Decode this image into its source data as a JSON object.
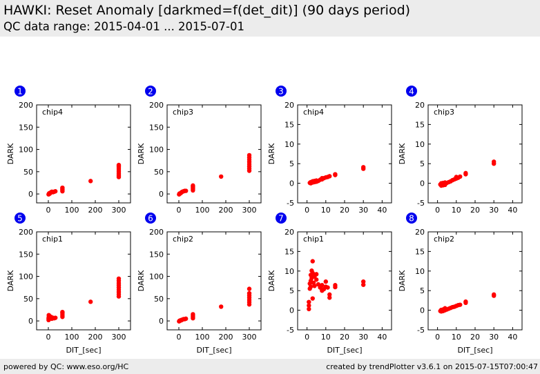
{
  "header": {
    "title_line1": "HAWKI: Reset Anomaly [darkmed=f(det_dit)] (90 days period)",
    "title_line2": "QC data range: 2015-04-01 ... 2015-07-01"
  },
  "footer": {
    "left": "powered by QC: www.eso.org/HC",
    "right": "created by trendPlotter v3.6.1 on 2015-07-15T07:00:47"
  },
  "colors": {
    "marker": "#ff0000",
    "badge": "#0000ee",
    "header_bg": "#ececec"
  },
  "chart_data": [
    {
      "type": "scatter",
      "number": "1",
      "label": "chip4",
      "xlabel": "",
      "ylabel": "DARK",
      "xlim": [
        -50,
        350
      ],
      "ylim": [
        -20,
        200
      ],
      "xticks": [
        0,
        100,
        200,
        300
      ],
      "yticks": [
        0,
        50,
        100,
        150,
        200
      ],
      "points": [
        [
          1,
          -1
        ],
        [
          2,
          0
        ],
        [
          3,
          1
        ],
        [
          4,
          0
        ],
        [
          5,
          2
        ],
        [
          6,
          1
        ],
        [
          8,
          2
        ],
        [
          10,
          3
        ],
        [
          12,
          4
        ],
        [
          15,
          5
        ],
        [
          20,
          4
        ],
        [
          25,
          5
        ],
        [
          30,
          6
        ],
        [
          60,
          6
        ],
        [
          60,
          8
        ],
        [
          60,
          10
        ],
        [
          60,
          12
        ],
        [
          60,
          14
        ],
        [
          180,
          29
        ],
        [
          300,
          38
        ],
        [
          300,
          42
        ],
        [
          300,
          46
        ],
        [
          300,
          50
        ],
        [
          300,
          54
        ],
        [
          300,
          58
        ],
        [
          300,
          62
        ],
        [
          300,
          65
        ]
      ]
    },
    {
      "type": "scatter",
      "number": "2",
      "label": "chip3",
      "xlabel": "",
      "ylabel": "DARK",
      "xlim": [
        -50,
        350
      ],
      "ylim": [
        -20,
        200
      ],
      "xticks": [
        0,
        100,
        200,
        300
      ],
      "yticks": [
        0,
        50,
        100,
        150,
        200
      ],
      "points": [
        [
          1,
          -1
        ],
        [
          2,
          0
        ],
        [
          3,
          1
        ],
        [
          5,
          1
        ],
        [
          8,
          2
        ],
        [
          10,
          3
        ],
        [
          12,
          4
        ],
        [
          15,
          5
        ],
        [
          20,
          6
        ],
        [
          25,
          7
        ],
        [
          30,
          7
        ],
        [
          60,
          8
        ],
        [
          60,
          11
        ],
        [
          60,
          14
        ],
        [
          60,
          17
        ],
        [
          60,
          19
        ],
        [
          180,
          39
        ],
        [
          300,
          52
        ],
        [
          300,
          57
        ],
        [
          300,
          62
        ],
        [
          300,
          67
        ],
        [
          300,
          72
        ],
        [
          300,
          77
        ],
        [
          300,
          82
        ],
        [
          300,
          87
        ]
      ]
    },
    {
      "type": "scatter",
      "number": "3",
      "label": "chip4",
      "xlabel": "",
      "ylabel": "DARK",
      "xlim": [
        -5,
        45
      ],
      "ylim": [
        -5,
        20
      ],
      "xticks": [
        0,
        10,
        20,
        30,
        40
      ],
      "yticks": [
        -5,
        0,
        5,
        10,
        15,
        20
      ],
      "points": [
        [
          1.5,
          0.1
        ],
        [
          2,
          0
        ],
        [
          2,
          0.3
        ],
        [
          3,
          0.2
        ],
        [
          3,
          0.5
        ],
        [
          4,
          0.3
        ],
        [
          4,
          0.6
        ],
        [
          5,
          0.4
        ],
        [
          5,
          0.7
        ],
        [
          6,
          0.6
        ],
        [
          7,
          0.9
        ],
        [
          8,
          1.0
        ],
        [
          8,
          1.3
        ],
        [
          9,
          1.3
        ],
        [
          10,
          1.5
        ],
        [
          11,
          1.6
        ],
        [
          12,
          1.8
        ],
        [
          15,
          2.1
        ],
        [
          15,
          2.3
        ],
        [
          30,
          3.7
        ],
        [
          30,
          4.1
        ]
      ]
    },
    {
      "type": "scatter",
      "number": "4",
      "label": "chip3",
      "xlabel": "",
      "ylabel": "DARK",
      "xlim": [
        -5,
        45
      ],
      "ylim": [
        -5,
        20
      ],
      "xticks": [
        0,
        10,
        20,
        30,
        40
      ],
      "yticks": [
        -5,
        0,
        5,
        10,
        15,
        20
      ],
      "points": [
        [
          1.5,
          -0.3
        ],
        [
          2,
          -0.6
        ],
        [
          2,
          0
        ],
        [
          2.5,
          -0.2
        ],
        [
          3,
          -0.5
        ],
        [
          3,
          0.1
        ],
        [
          4,
          -0.4
        ],
        [
          4,
          0.2
        ],
        [
          5,
          0.1
        ],
        [
          6,
          0.3
        ],
        [
          7,
          0.5
        ],
        [
          8,
          0.8
        ],
        [
          9,
          1.0
        ],
        [
          10,
          1.2
        ],
        [
          10,
          1.6
        ],
        [
          11,
          1.4
        ],
        [
          12,
          1.7
        ],
        [
          15,
          2.3
        ],
        [
          15,
          2.6
        ],
        [
          30,
          5.0
        ],
        [
          30,
          5.5
        ]
      ]
    },
    {
      "type": "scatter",
      "number": "5",
      "label": "chip1",
      "xlabel": "DIT_[sec]",
      "ylabel": "DARK",
      "xlim": [
        -50,
        350
      ],
      "ylim": [
        -20,
        200
      ],
      "xticks": [
        0,
        100,
        200,
        300
      ],
      "yticks": [
        0,
        50,
        100,
        150,
        200
      ],
      "points": [
        [
          1,
          2
        ],
        [
          1,
          6
        ],
        [
          2,
          9
        ],
        [
          2,
          13
        ],
        [
          3,
          4
        ],
        [
          4,
          8
        ],
        [
          5,
          11
        ],
        [
          6,
          5
        ],
        [
          8,
          7
        ],
        [
          10,
          6
        ],
        [
          12,
          9
        ],
        [
          15,
          5
        ],
        [
          20,
          7
        ],
        [
          25,
          6
        ],
        [
          30,
          7
        ],
        [
          60,
          9
        ],
        [
          60,
          12
        ],
        [
          60,
          15
        ],
        [
          60,
          18
        ],
        [
          60,
          20
        ],
        [
          180,
          43
        ],
        [
          300,
          55
        ],
        [
          300,
          60
        ],
        [
          300,
          65
        ],
        [
          300,
          70
        ],
        [
          300,
          75
        ],
        [
          300,
          80
        ],
        [
          300,
          85
        ],
        [
          300,
          90
        ],
        [
          300,
          95
        ]
      ]
    },
    {
      "type": "scatter",
      "number": "6",
      "label": "chip2",
      "xlabel": "DIT_[sec]",
      "ylabel": "DARK",
      "xlim": [
        -50,
        350
      ],
      "ylim": [
        -20,
        200
      ],
      "xticks": [
        0,
        100,
        200,
        300
      ],
      "yticks": [
        0,
        50,
        100,
        150,
        200
      ],
      "points": [
        [
          1,
          -1
        ],
        [
          2,
          0
        ],
        [
          3,
          0
        ],
        [
          5,
          1
        ],
        [
          8,
          1
        ],
        [
          10,
          2
        ],
        [
          12,
          2
        ],
        [
          15,
          3
        ],
        [
          20,
          4
        ],
        [
          25,
          4
        ],
        [
          30,
          5
        ],
        [
          60,
          6
        ],
        [
          60,
          9
        ],
        [
          60,
          12
        ],
        [
          60,
          15
        ],
        [
          180,
          32
        ],
        [
          300,
          37
        ],
        [
          300,
          42
        ],
        [
          300,
          47
        ],
        [
          300,
          52
        ],
        [
          300,
          57
        ],
        [
          300,
          62
        ],
        [
          300,
          72
        ]
      ]
    },
    {
      "type": "scatter",
      "number": "7",
      "label": "chip1",
      "xlabel": "DIT_[sec]",
      "ylabel": "DARK",
      "xlim": [
        -5,
        45
      ],
      "ylim": [
        -5,
        20
      ],
      "xticks": [
        0,
        10,
        20,
        30,
        40
      ],
      "yticks": [
        -5,
        0,
        5,
        10,
        15,
        20
      ],
      "points": [
        [
          1,
          0.3
        ],
        [
          1,
          1.2
        ],
        [
          1,
          2.1
        ],
        [
          1.5,
          5.5
        ],
        [
          1.5,
          6.8
        ],
        [
          2,
          6.0
        ],
        [
          2,
          7.5
        ],
        [
          2,
          9.0
        ],
        [
          2.5,
          8.2
        ],
        [
          2.5,
          10.1
        ],
        [
          3,
          12.5
        ],
        [
          3,
          9.5
        ],
        [
          3,
          3.0
        ],
        [
          3.5,
          7.0
        ],
        [
          4,
          8.6
        ],
        [
          4,
          6.2
        ],
        [
          5,
          9.2
        ],
        [
          5,
          7.8
        ],
        [
          6,
          6.6
        ],
        [
          7,
          5.8
        ],
        [
          8,
          5.0
        ],
        [
          8,
          6.4
        ],
        [
          9,
          5.4
        ],
        [
          10,
          6.0
        ],
        [
          10,
          7.3
        ],
        [
          11,
          5.8
        ],
        [
          12,
          3.2
        ],
        [
          12,
          4.0
        ],
        [
          15,
          5.9
        ],
        [
          15,
          6.4
        ],
        [
          30,
          6.5
        ],
        [
          30,
          7.3
        ]
      ]
    },
    {
      "type": "scatter",
      "number": "8",
      "label": "chip2",
      "xlabel": "DIT_[sec]",
      "ylabel": "DARK",
      "xlim": [
        -5,
        45
      ],
      "ylim": [
        -5,
        20
      ],
      "xticks": [
        0,
        10,
        20,
        30,
        40
      ],
      "yticks": [
        -5,
        0,
        5,
        10,
        15,
        20
      ],
      "points": [
        [
          1.5,
          -0.2
        ],
        [
          2,
          -0.3
        ],
        [
          2,
          0.1
        ],
        [
          2.5,
          0
        ],
        [
          3,
          -0.2
        ],
        [
          3,
          0.2
        ],
        [
          4,
          0
        ],
        [
          4,
          0.5
        ],
        [
          5,
          0.2
        ],
        [
          6,
          0.4
        ],
        [
          7,
          0.6
        ],
        [
          8,
          0.8
        ],
        [
          9,
          0.9
        ],
        [
          10,
          1.1
        ],
        [
          11,
          1.3
        ],
        [
          12,
          1.4
        ],
        [
          15,
          1.9
        ],
        [
          15,
          2.2
        ],
        [
          30,
          3.7
        ],
        [
          30,
          4.0
        ]
      ]
    }
  ]
}
